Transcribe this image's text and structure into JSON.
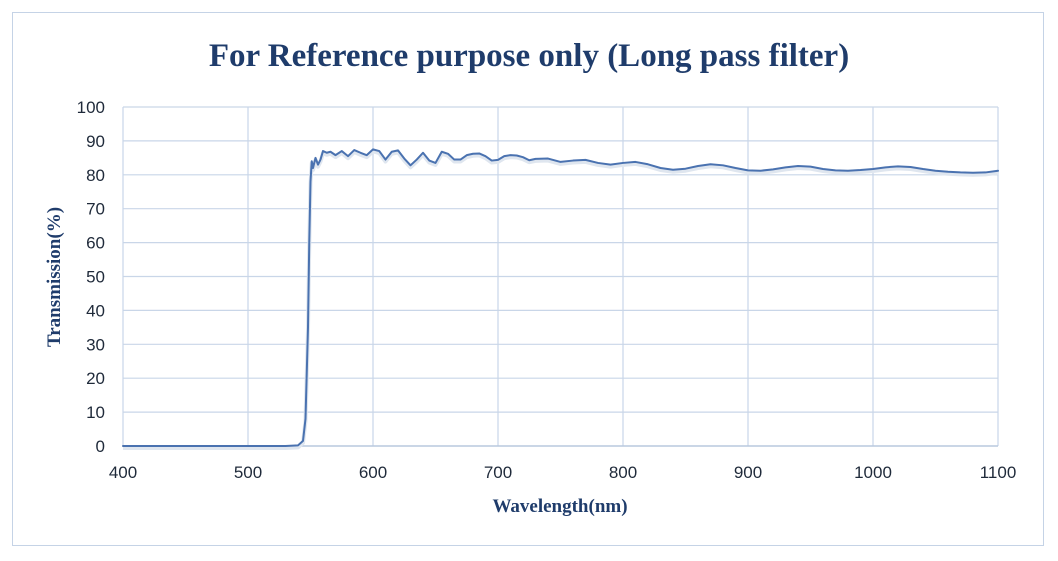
{
  "chart_data": {
    "type": "line",
    "title": "For Reference purpose only (Long pass filter)",
    "xlabel": "Wavelength(nm)",
    "ylabel": "Transmission(%)",
    "xlim": [
      400,
      1100
    ],
    "ylim": [
      0,
      100
    ],
    "x_ticks": [
      "400",
      "500",
      "600",
      "700",
      "800",
      "900",
      "1000",
      "1100"
    ],
    "y_ticks": [
      "0",
      "10",
      "20",
      "30",
      "40",
      "50",
      "60",
      "70",
      "80",
      "90",
      "100"
    ],
    "grid": true,
    "legend": "none",
    "series": [
      {
        "color": "#4a72b0",
        "x": [
          400,
          450,
          500,
          530,
          540,
          544,
          546,
          548,
          549,
          550,
          551,
          552,
          554,
          556,
          558,
          560,
          563,
          566,
          570,
          575,
          580,
          585,
          590,
          595,
          600,
          605,
          610,
          615,
          620,
          625,
          630,
          635,
          640,
          645,
          650,
          655,
          660,
          665,
          670,
          675,
          680,
          685,
          690,
          695,
          700,
          705,
          710,
          715,
          720,
          725,
          730,
          740,
          750,
          760,
          770,
          780,
          790,
          800,
          810,
          820,
          830,
          840,
          850,
          860,
          870,
          880,
          890,
          900,
          910,
          920,
          930,
          940,
          950,
          960,
          970,
          980,
          990,
          1000,
          1010,
          1020,
          1030,
          1040,
          1050,
          1060,
          1070,
          1080,
          1090,
          1100
        ],
        "y": [
          0,
          0,
          0,
          0,
          0.2,
          1.5,
          8,
          35,
          60,
          78,
          84,
          82,
          85,
          83,
          84.5,
          87,
          86.5,
          86.8,
          85.8,
          87,
          85.5,
          87.3,
          86.5,
          85.8,
          87.5,
          87,
          84.5,
          86.8,
          87.2,
          84.8,
          82.8,
          84.5,
          86.5,
          84.2,
          83.5,
          86.8,
          86.2,
          84.5,
          84.5,
          85.8,
          86.2,
          86.3,
          85.5,
          84.2,
          84.4,
          85.5,
          85.8,
          85.7,
          85.2,
          84.3,
          84.7,
          84.8,
          83.8,
          84.2,
          84.4,
          83.5,
          83.0,
          83.5,
          83.8,
          83.1,
          82.0,
          81.5,
          81.8,
          82.6,
          83.1,
          82.8,
          82.0,
          81.3,
          81.2,
          81.6,
          82.2,
          82.6,
          82.4,
          81.7,
          81.3,
          81.2,
          81.4,
          81.7,
          82.2,
          82.5,
          82.3,
          81.7,
          81.2,
          80.9,
          80.7,
          80.6,
          80.7,
          81.2
        ]
      }
    ]
  }
}
